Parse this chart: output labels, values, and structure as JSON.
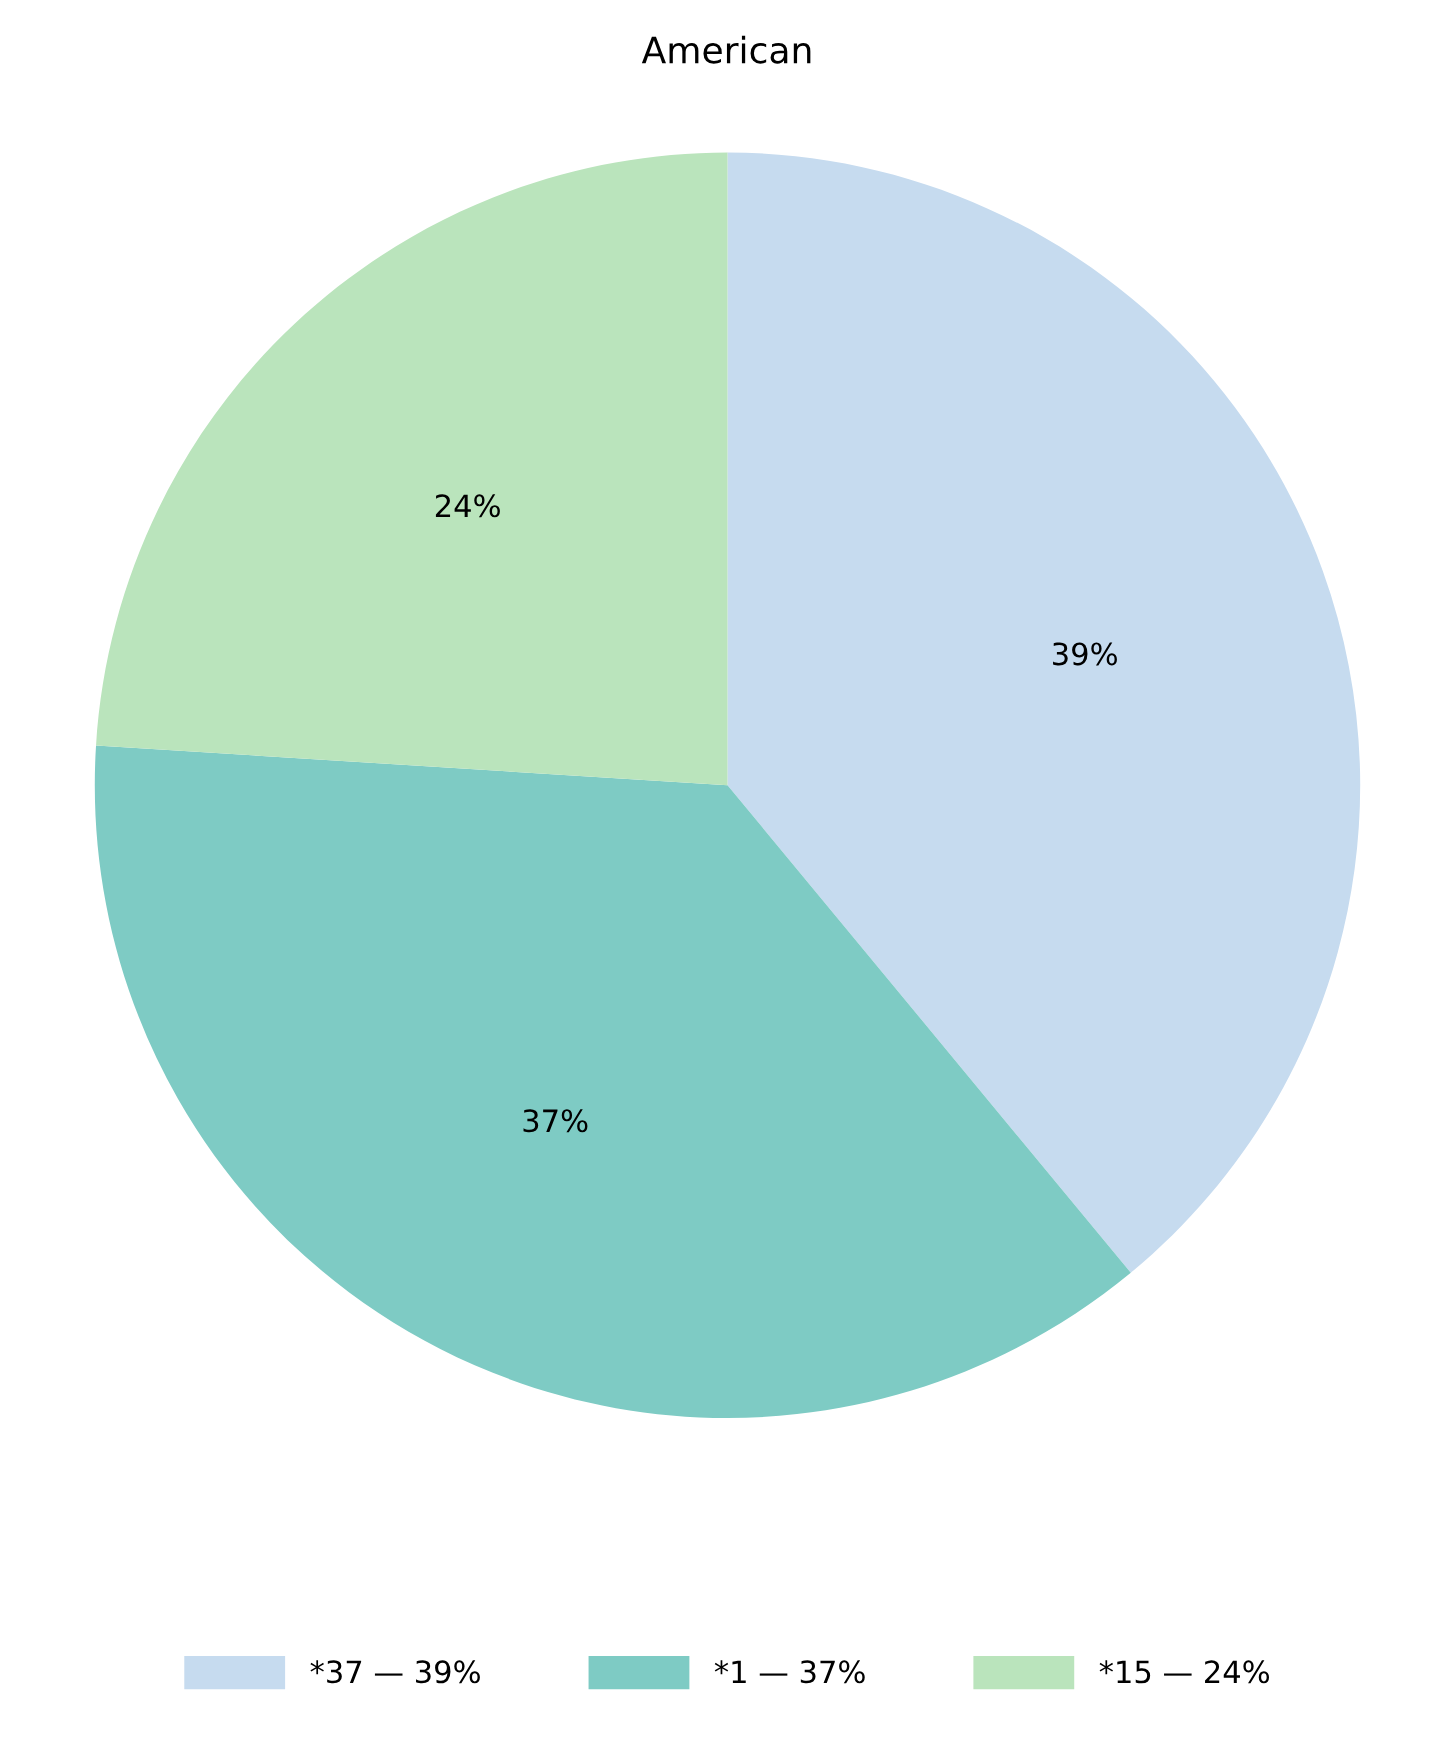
{
  "chart_data": {
    "type": "pie",
    "title": "American",
    "categories": [
      "*37 — 39%",
      "*1 — 37%",
      "*15 — 24%"
    ],
    "values": [
      39,
      37,
      24
    ],
    "value_labels": [
      "39%",
      "37%",
      "24%"
    ],
    "colors": [
      "#c6dbef",
      "#7ecbc4",
      "#bae4bc"
    ],
    "legend": "bottom"
  }
}
